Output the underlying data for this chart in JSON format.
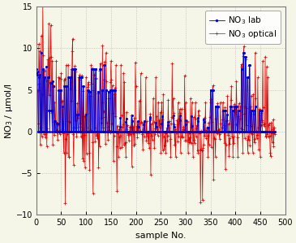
{
  "xlabel": "sample No.",
  "ylabel": "NO$_3$ / μmol/l",
  "xlim": [
    0,
    500
  ],
  "ylim": [
    -10,
    15
  ],
  "yticks": [
    -10,
    -5,
    0,
    5,
    10,
    15
  ],
  "xticks": [
    0,
    50,
    100,
    150,
    200,
    250,
    300,
    350,
    400,
    450,
    500
  ],
  "lab_color": "#0000dd",
  "optical_color": "#dd0000",
  "lab_label": "NO$_3$ lab",
  "optical_label": "NO$_3$ optical",
  "background_color": "#f5f5e8",
  "grid_color": "#bbbbbb",
  "legend_fontsize": 7.5,
  "axis_fontsize": 8,
  "tick_fontsize": 7
}
